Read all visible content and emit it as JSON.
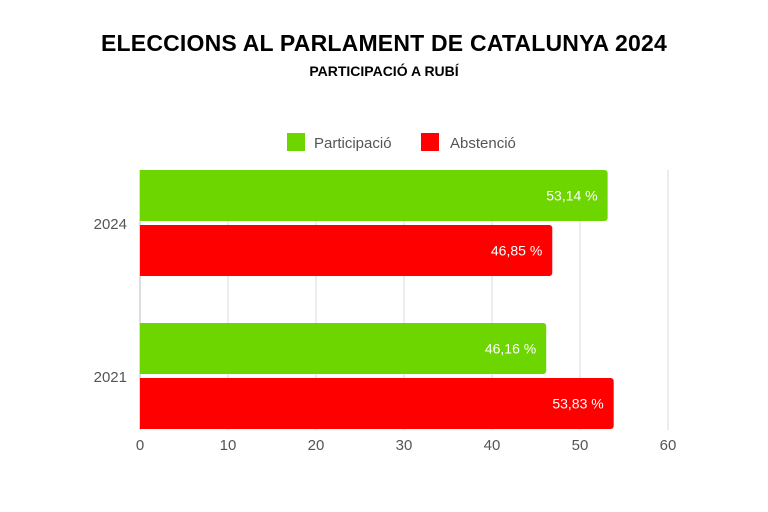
{
  "chart_data": {
    "type": "bar",
    "orientation": "horizontal",
    "title": "ELECCIONS AL PARLAMENT DE CATALUNYA 2024",
    "subtitle": "PARTICIPACIÓ A RUBÍ",
    "categories": [
      "2024",
      "2021"
    ],
    "series": [
      {
        "name": "Participació",
        "color": "#6dd600",
        "values": [
          53.14,
          46.16
        ],
        "labels": [
          "53,14 %",
          "46,16 %"
        ]
      },
      {
        "name": "Abstenció",
        "color": "#ff0000",
        "values": [
          46.85,
          53.83
        ],
        "labels": [
          "46,85 %",
          "53,83 %"
        ]
      }
    ],
    "xlim": [
      0,
      60
    ],
    "xticks": [
      "0",
      "10",
      "20",
      "30",
      "40",
      "50",
      "60"
    ],
    "xlabel": "",
    "ylabel": "",
    "grid": true,
    "legend": "top"
  }
}
